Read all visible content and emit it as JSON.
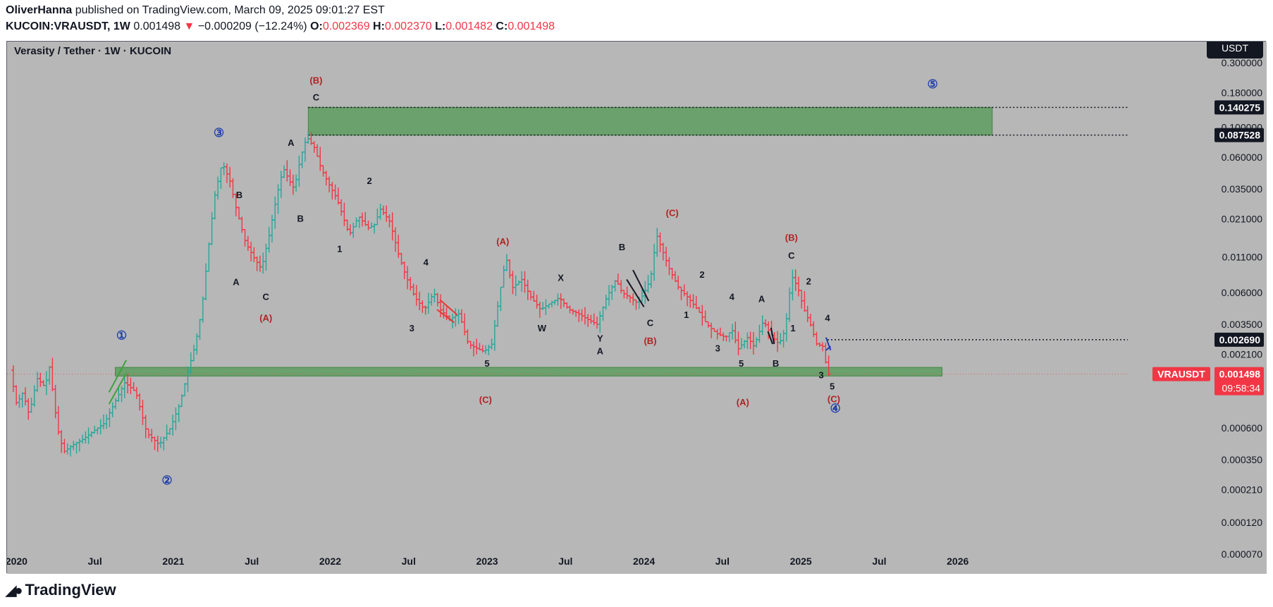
{
  "header": {
    "author": "OliverHanna",
    "published": "published on TradingView.com, March 09, 2025 09:01:27 EST",
    "symbol_line": "KUCOIN:VRAUSDT, 1W",
    "price": "0.001498",
    "change_arrow": "▼",
    "change": "−0.000209 (−12.24%)",
    "o_label": "O:",
    "o_value": "0.002369",
    "h_label": "H:",
    "h_value": "0.002370",
    "l_label": "L:",
    "l_value": "0.001482",
    "c_label": "C:",
    "c_value": "0.001498"
  },
  "footer": {
    "logo_icon": "tradingview-logo-icon",
    "brand": "TradingView"
  },
  "colors": {
    "up": "#26a69a",
    "down": "#f23645",
    "zone": "#5e9e60",
    "bg": "#b7b7b7",
    "red_label": "#b22222",
    "blue_label": "#1f3fa8"
  },
  "chart_data": {
    "type": "candlestick",
    "title": "Verasity / Tether · 1W · KUCOIN",
    "currency_badge": "USDT",
    "symbol_tag": "VRAUSDT",
    "current_price": "0.001498",
    "countdown": "09:58:34",
    "y_scale": "log",
    "ylim": [
      5e-05,
      0.43
    ],
    "y_ticks": [
      "0.300000",
      "0.180000",
      "0.100000",
      "0.060000",
      "0.035000",
      "0.021000",
      "0.011000",
      "0.006000",
      "0.003500",
      "0.002100",
      "0.000600",
      "0.000350",
      "0.000210",
      "0.000120",
      "0.000070"
    ],
    "price_tags": [
      {
        "value": "0.140275",
        "style": "dark"
      },
      {
        "value": "0.087528",
        "style": "dark"
      },
      {
        "value": "0.002690",
        "style": "dark"
      }
    ],
    "x_ticks": [
      {
        "label": "2020",
        "t": 2020.0
      },
      {
        "label": "Jul",
        "t": 2020.5
      },
      {
        "label": "2021",
        "t": 2021.0
      },
      {
        "label": "Jul",
        "t": 2021.5
      },
      {
        "label": "2022",
        "t": 2022.0
      },
      {
        "label": "Jul",
        "t": 2022.5
      },
      {
        "label": "2023",
        "t": 2023.0
      },
      {
        "label": "Jul",
        "t": 2023.5
      },
      {
        "label": "2024",
        "t": 2024.0
      },
      {
        "label": "Jul",
        "t": 2024.5
      },
      {
        "label": "2025",
        "t": 2025.0
      },
      {
        "label": "Jul",
        "t": 2025.5
      },
      {
        "label": "2026",
        "t": 2026.0
      }
    ],
    "price_path": [
      [
        2019.98,
        0.0016
      ],
      [
        2020.02,
        0.0009
      ],
      [
        2020.06,
        0.0011
      ],
      [
        2020.1,
        0.00075
      ],
      [
        2020.15,
        0.0014
      ],
      [
        2020.2,
        0.0012
      ],
      [
        2020.23,
        0.0017
      ],
      [
        2020.28,
        0.0006
      ],
      [
        2020.32,
        0.0004
      ],
      [
        2020.38,
        0.00045
      ],
      [
        2020.45,
        0.0005
      ],
      [
        2020.52,
        0.00058
      ],
      [
        2020.58,
        0.00065
      ],
      [
        2020.66,
        0.001
      ],
      [
        2020.71,
        0.0013
      ],
      [
        2020.78,
        0.0011
      ],
      [
        2020.85,
        0.00055
      ],
      [
        2020.93,
        0.00045
      ],
      [
        2021.0,
        0.0006
      ],
      [
        2021.06,
        0.0009
      ],
      [
        2021.12,
        0.0017
      ],
      [
        2021.16,
        0.0025
      ],
      [
        2021.2,
        0.0045
      ],
      [
        2021.24,
        0.012
      ],
      [
        2021.28,
        0.03
      ],
      [
        2021.33,
        0.055
      ],
      [
        2021.38,
        0.04
      ],
      [
        2021.42,
        0.025
      ],
      [
        2021.48,
        0.014
      ],
      [
        2021.53,
        0.011
      ],
      [
        2021.58,
        0.009
      ],
      [
        2021.63,
        0.016
      ],
      [
        2021.68,
        0.032
      ],
      [
        2021.72,
        0.05
      ],
      [
        2021.76,
        0.04
      ],
      [
        2021.79,
        0.035
      ],
      [
        2021.83,
        0.06
      ],
      [
        2021.87,
        0.085
      ],
      [
        2021.92,
        0.07
      ],
      [
        2021.96,
        0.05
      ],
      [
        2022.02,
        0.036
      ],
      [
        2022.06,
        0.03
      ],
      [
        2022.1,
        0.022
      ],
      [
        2022.14,
        0.016
      ],
      [
        2022.2,
        0.022
      ],
      [
        2022.26,
        0.018
      ],
      [
        2022.3,
        0.019
      ],
      [
        2022.34,
        0.025
      ],
      [
        2022.4,
        0.02
      ],
      [
        2022.45,
        0.012
      ],
      [
        2022.5,
        0.008
      ],
      [
        2022.56,
        0.0055
      ],
      [
        2022.62,
        0.0045
      ],
      [
        2022.68,
        0.006
      ],
      [
        2022.72,
        0.0045
      ],
      [
        2022.78,
        0.0038
      ],
      [
        2022.84,
        0.0042
      ],
      [
        2022.9,
        0.0025
      ],
      [
        2022.96,
        0.0023
      ],
      [
        2023.0,
        0.0022
      ],
      [
        2023.05,
        0.0025
      ],
      [
        2023.1,
        0.006
      ],
      [
        2023.14,
        0.011
      ],
      [
        2023.18,
        0.0065
      ],
      [
        2023.24,
        0.0075
      ],
      [
        2023.3,
        0.0055
      ],
      [
        2023.36,
        0.0045
      ],
      [
        2023.42,
        0.005
      ],
      [
        2023.48,
        0.0055
      ],
      [
        2023.54,
        0.0045
      ],
      [
        2023.6,
        0.0042
      ],
      [
        2023.66,
        0.0038
      ],
      [
        2023.72,
        0.0035
      ],
      [
        2023.78,
        0.0055
      ],
      [
        2023.84,
        0.0075
      ],
      [
        2023.88,
        0.006
      ],
      [
        2023.93,
        0.0055
      ],
      [
        2023.98,
        0.005
      ],
      [
        2024.02,
        0.006
      ],
      [
        2024.06,
        0.0075
      ],
      [
        2024.1,
        0.016
      ],
      [
        2024.14,
        0.012
      ],
      [
        2024.18,
        0.009
      ],
      [
        2024.24,
        0.0065
      ],
      [
        2024.3,
        0.0055
      ],
      [
        2024.36,
        0.0045
      ],
      [
        2024.42,
        0.0035
      ],
      [
        2024.48,
        0.003
      ],
      [
        2024.54,
        0.0028
      ],
      [
        2024.58,
        0.0032
      ],
      [
        2024.62,
        0.0023
      ],
      [
        2024.68,
        0.0028
      ],
      [
        2024.72,
        0.0024
      ],
      [
        2024.78,
        0.0037
      ],
      [
        2024.84,
        0.0028
      ],
      [
        2024.88,
        0.0025
      ],
      [
        2024.92,
        0.0032
      ],
      [
        2024.96,
        0.008
      ],
      [
        2025.0,
        0.0065
      ],
      [
        2025.04,
        0.0045
      ],
      [
        2025.08,
        0.0035
      ],
      [
        2025.12,
        0.0025
      ],
      [
        2025.16,
        0.0024
      ],
      [
        2025.19,
        0.0015
      ]
    ],
    "zones": [
      {
        "label": "resistance",
        "from": 0.087528,
        "to": 0.140275,
        "t_start": 2021.86,
        "t_end": 2026.22
      },
      {
        "label": "support",
        "from": 0.00145,
        "to": 0.00168,
        "t_start": 2020.63,
        "t_end": 2025.9
      }
    ],
    "annotations": [
      {
        "text": "①",
        "t": 2020.67,
        "v": 0.0027,
        "color": "blue"
      },
      {
        "text": "②",
        "t": 2020.96,
        "v": 0.00023,
        "color": "blue"
      },
      {
        "text": "③",
        "t": 2021.29,
        "v": 0.085,
        "color": "blue"
      },
      {
        "text": "④",
        "t": 2025.22,
        "v": 0.00078,
        "color": "blue"
      },
      {
        "text": "⑤",
        "t": 2025.84,
        "v": 0.195,
        "color": "blue"
      },
      {
        "text": "A",
        "t": 2021.4,
        "v": 0.0068,
        "color": "black"
      },
      {
        "text": "B",
        "t": 2021.42,
        "v": 0.03,
        "color": "black"
      },
      {
        "text": "C",
        "t": 2021.59,
        "v": 0.0053,
        "color": "black"
      },
      {
        "text": "(A)",
        "t": 2021.59,
        "v": 0.0037,
        "color": "red"
      },
      {
        "text": "A",
        "t": 2021.75,
        "v": 0.073,
        "color": "black"
      },
      {
        "text": "B",
        "t": 2021.81,
        "v": 0.02,
        "color": "black"
      },
      {
        "text": "(B)",
        "t": 2021.91,
        "v": 0.21,
        "color": "red"
      },
      {
        "text": "C",
        "t": 2021.91,
        "v": 0.158,
        "color": "black"
      },
      {
        "text": "1",
        "t": 2022.06,
        "v": 0.012,
        "color": "black"
      },
      {
        "text": "2",
        "t": 2022.25,
        "v": 0.038,
        "color": "black"
      },
      {
        "text": "3",
        "t": 2022.52,
        "v": 0.0031,
        "color": "black"
      },
      {
        "text": "4",
        "t": 2022.61,
        "v": 0.0095,
        "color": "black"
      },
      {
        "text": "5",
        "t": 2023.0,
        "v": 0.0017,
        "color": "black"
      },
      {
        "text": "(C)",
        "t": 2022.99,
        "v": 0.00092,
        "color": "red"
      },
      {
        "text": "(A)",
        "t": 2023.1,
        "v": 0.0136,
        "color": "red"
      },
      {
        "text": "W",
        "t": 2023.35,
        "v": 0.0031,
        "color": "black"
      },
      {
        "text": "X",
        "t": 2023.47,
        "v": 0.0073,
        "color": "black"
      },
      {
        "text": "Y",
        "t": 2023.72,
        "v": 0.0026,
        "color": "black"
      },
      {
        "text": "A",
        "t": 2023.72,
        "v": 0.0021,
        "color": "black"
      },
      {
        "text": "B",
        "t": 2023.86,
        "v": 0.0123,
        "color": "black"
      },
      {
        "text": "C",
        "t": 2024.04,
        "v": 0.0034,
        "color": "black"
      },
      {
        "text": "(B)",
        "t": 2024.04,
        "v": 0.0025,
        "color": "red"
      },
      {
        "text": "(C)",
        "t": 2024.18,
        "v": 0.022,
        "color": "red"
      },
      {
        "text": "1",
        "t": 2024.27,
        "v": 0.0039,
        "color": "black"
      },
      {
        "text": "2",
        "t": 2024.37,
        "v": 0.0077,
        "color": "black"
      },
      {
        "text": "3",
        "t": 2024.47,
        "v": 0.0022,
        "color": "black"
      },
      {
        "text": "4",
        "t": 2024.56,
        "v": 0.0053,
        "color": "black"
      },
      {
        "text": "5",
        "t": 2024.62,
        "v": 0.0017,
        "color": "black"
      },
      {
        "text": "(A)",
        "t": 2024.63,
        "v": 0.00088,
        "color": "red"
      },
      {
        "text": "A",
        "t": 2024.75,
        "v": 0.0051,
        "color": "black"
      },
      {
        "text": "B",
        "t": 2024.84,
        "v": 0.0017,
        "color": "black"
      },
      {
        "text": "(B)",
        "t": 2024.94,
        "v": 0.0145,
        "color": "red"
      },
      {
        "text": "C",
        "t": 2024.94,
        "v": 0.0107,
        "color": "black"
      },
      {
        "text": "1",
        "t": 2024.95,
        "v": 0.0031,
        "color": "black"
      },
      {
        "text": "2",
        "t": 2025.05,
        "v": 0.0069,
        "color": "black"
      },
      {
        "text": "3",
        "t": 2025.13,
        "v": 0.0014,
        "color": "black"
      },
      {
        "text": "4",
        "t": 2025.17,
        "v": 0.0037,
        "color": "black"
      },
      {
        "text": "5",
        "t": 2025.2,
        "v": 0.00115,
        "color": "black"
      },
      {
        "text": "(C)",
        "t": 2025.21,
        "v": 0.00093,
        "color": "red"
      }
    ],
    "pattern_lines": [
      {
        "color": "green",
        "points": [
          [
            2020.59,
            0.0009
          ],
          [
            2020.7,
            0.00152
          ],
          [
            2020.59,
            0.0011
          ],
          [
            2020.7,
            0.0019
          ]
        ]
      },
      {
        "color": "red",
        "points": [
          [
            2022.68,
            0.0045
          ],
          [
            2022.79,
            0.0036
          ],
          [
            2022.7,
            0.0053
          ],
          [
            2022.81,
            0.0041
          ]
        ]
      },
      {
        "color": "black",
        "points": [
          [
            2023.89,
            0.0075
          ],
          [
            2024.0,
            0.0047
          ],
          [
            2023.93,
            0.0088
          ],
          [
            2024.03,
            0.0052
          ]
        ]
      },
      {
        "color": "black",
        "points": [
          [
            2024.81,
            0.0033
          ],
          [
            2024.83,
            0.0025
          ],
          [
            2024.79,
            0.0031
          ],
          [
            2024.82,
            0.0025
          ]
        ]
      },
      {
        "color": "blue",
        "points": [
          [
            2025.16,
            0.0028
          ],
          [
            2025.19,
            0.00225
          ],
          [
            2025.16,
            0.00225
          ],
          [
            2025.19,
            0.0024
          ]
        ]
      }
    ]
  }
}
